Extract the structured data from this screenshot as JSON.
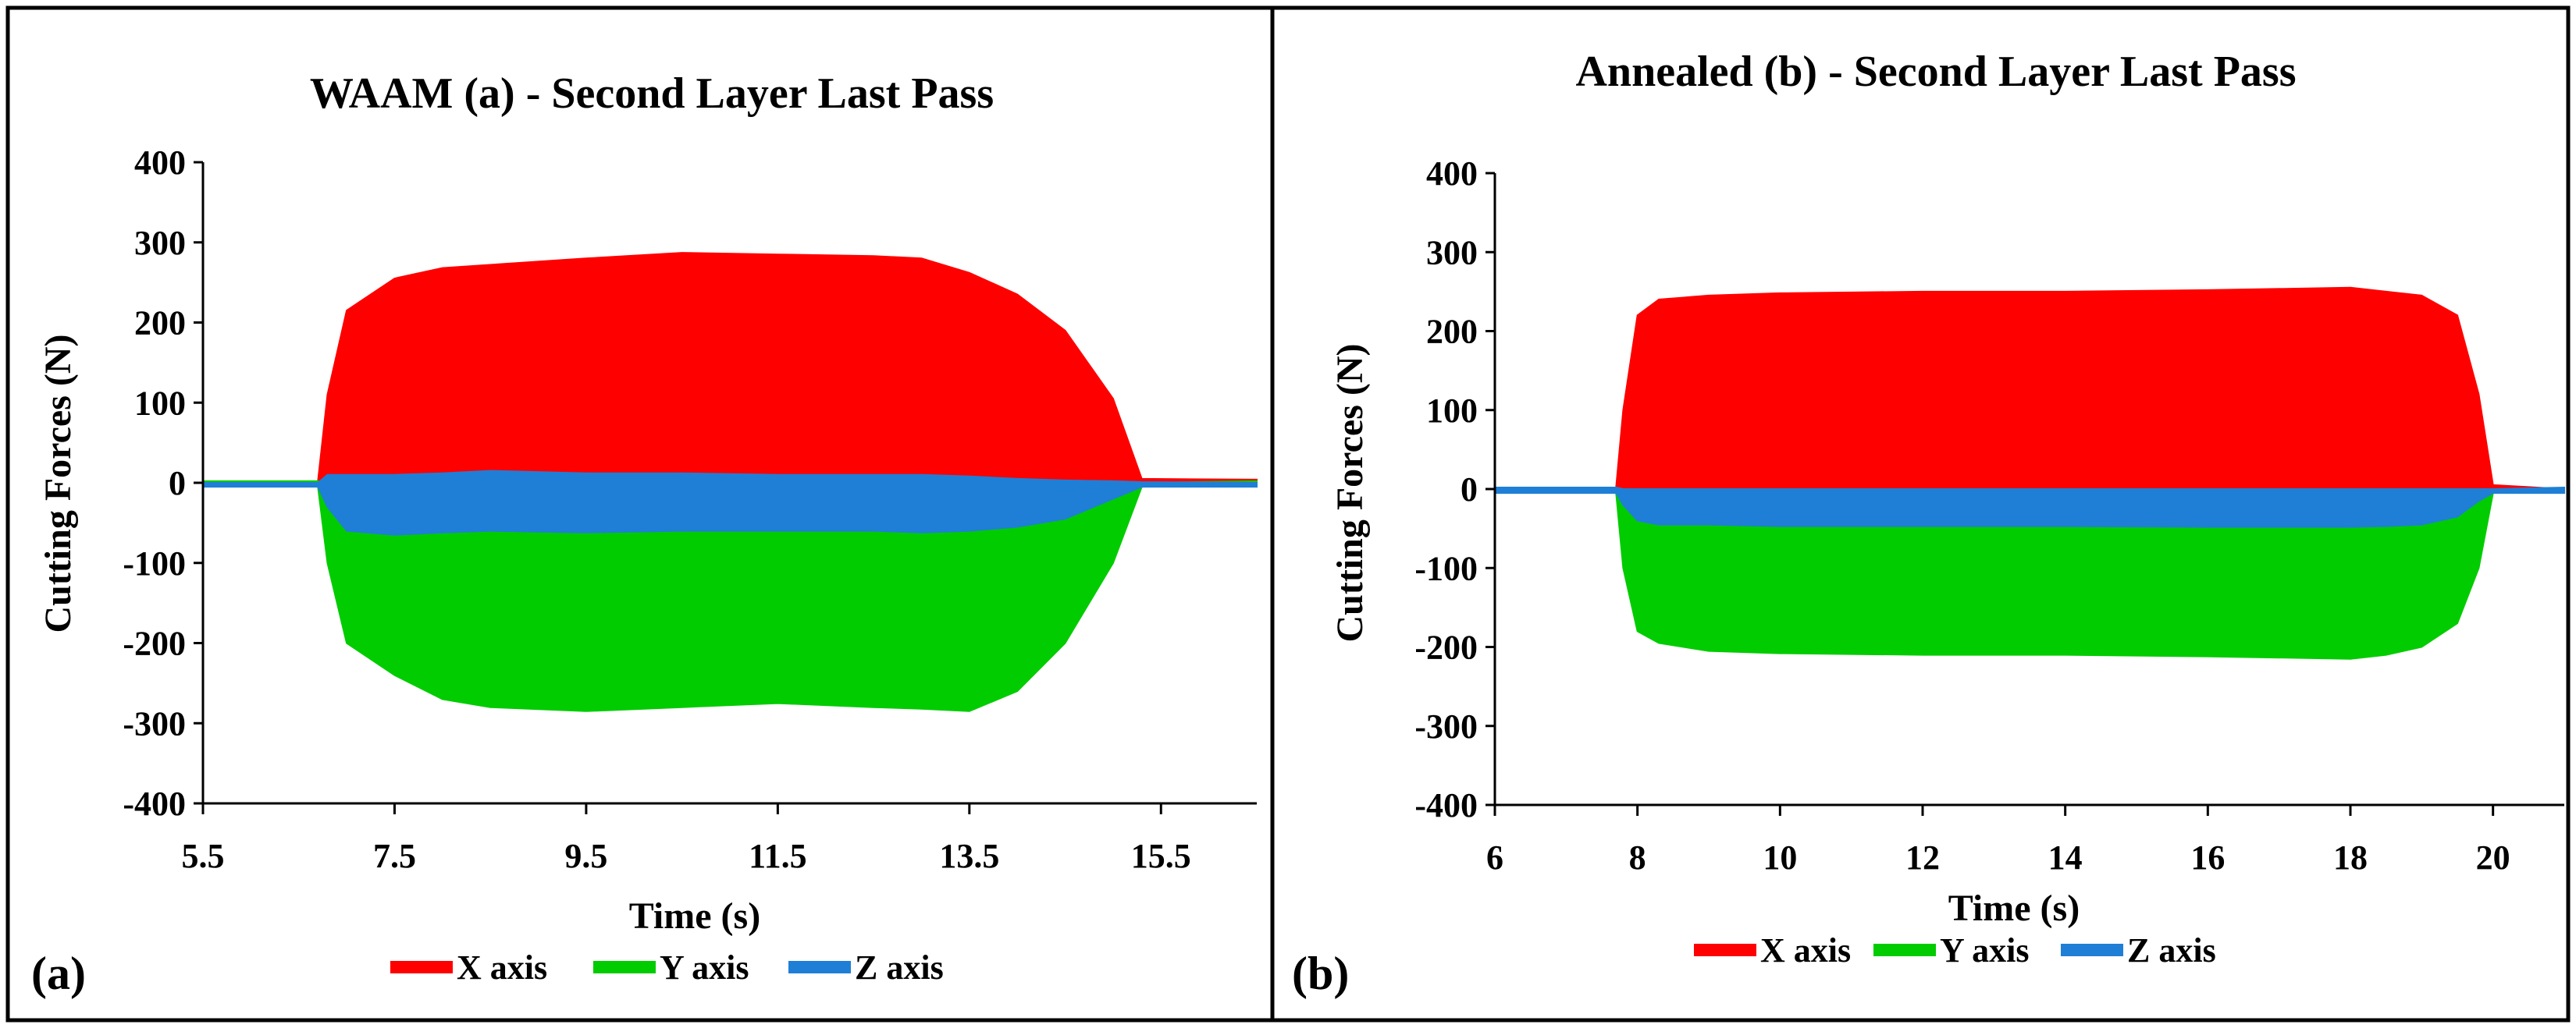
{
  "panel_labels": [
    "(a)",
    "(b)"
  ],
  "colors": {
    "x_axis": "#ff0000",
    "y_axis": "#00cc00",
    "z_axis": "#1f7fd6",
    "frame": "#000000"
  },
  "chart_data": [
    {
      "type": "area",
      "title": "WAAM (a) - Second Layer Last Pass",
      "xlabel": "Time (s)",
      "ylabel": "Cutting Forces (N)",
      "xlim": [
        5.5,
        16.5
      ],
      "ylim": [
        -400,
        400
      ],
      "xticks": [
        5.5,
        7.5,
        9.5,
        11.5,
        13.5,
        15.5
      ],
      "xtick_labels": [
        "5.5",
        "7.5",
        "9.5",
        "11.5",
        "13.5",
        "15.5"
      ],
      "yticks": [
        400,
        300,
        200,
        100,
        0,
        -100,
        -200,
        -300,
        -400
      ],
      "ytick_labels": [
        "400",
        "300",
        "200",
        "100",
        "0",
        "-100",
        "-200",
        "-300",
        "-400"
      ],
      "legend": [
        "X axis",
        "Y axis",
        "Z axis"
      ],
      "legend_position": "bottom",
      "series": [
        {
          "name": "X axis",
          "x": [
            5.5,
            6.7,
            6.8,
            7.0,
            7.5,
            8.0,
            8.5,
            9.5,
            10.5,
            11.5,
            12.5,
            13.0,
            13.5,
            14.0,
            14.5,
            15.0,
            15.3,
            16.5
          ],
          "upper": [
            0,
            2,
            110,
            215,
            255,
            268,
            272,
            280,
            287,
            285,
            283,
            280,
            262,
            235,
            190,
            105,
            5,
            4
          ],
          "lower": [
            0,
            0,
            0,
            0,
            0,
            0,
            0,
            0,
            0,
            0,
            0,
            0,
            0,
            0,
            0,
            0,
            0,
            0
          ]
        },
        {
          "name": "Y axis",
          "x": [
            5.5,
            6.7,
            6.8,
            7.0,
            7.5,
            8.0,
            8.5,
            9.5,
            10.5,
            11.5,
            12.5,
            13.0,
            13.5,
            14.0,
            14.5,
            15.0,
            15.3,
            16.5
          ],
          "upper": [
            2,
            2,
            0,
            0,
            0,
            0,
            0,
            0,
            0,
            0,
            0,
            0,
            0,
            0,
            0,
            0,
            0,
            2
          ],
          "lower": [
            2,
            -5,
            -100,
            -200,
            -240,
            -270,
            -280,
            -285,
            -280,
            -275,
            -280,
            -282,
            -285,
            -260,
            -200,
            -100,
            -5,
            0
          ]
        },
        {
          "name": "Z axis",
          "x": [
            5.5,
            6.7,
            6.8,
            7.0,
            7.5,
            8.0,
            8.5,
            9.5,
            10.5,
            11.5,
            12.5,
            13.0,
            13.5,
            14.0,
            14.5,
            15.0,
            15.3,
            16.5
          ],
          "upper": [
            0,
            0,
            10,
            10,
            10,
            12,
            15,
            12,
            12,
            10,
            10,
            10,
            8,
            5,
            3,
            2,
            1,
            0
          ],
          "lower": [
            -5,
            -5,
            -30,
            -60,
            -65,
            -62,
            -60,
            -62,
            -60,
            -60,
            -60,
            -62,
            -60,
            -55,
            -45,
            -20,
            -5,
            -5
          ]
        }
      ]
    },
    {
      "type": "area",
      "title": "Annealed (b) - Second Layer Last Pass",
      "xlabel": "Time (s)",
      "ylabel": "Cutting Forces (N)",
      "xlim": [
        6,
        21
      ],
      "ylim": [
        -400,
        400
      ],
      "xticks": [
        6,
        8,
        10,
        12,
        14,
        16,
        18,
        20
      ],
      "xtick_labels": [
        "6",
        "8",
        "10",
        "12",
        "14",
        "16",
        "18",
        "20"
      ],
      "yticks": [
        400,
        300,
        200,
        100,
        0,
        -100,
        -200,
        -300,
        -400
      ],
      "ytick_labels": [
        "400",
        "300",
        "200",
        "100",
        "0",
        "-100",
        "-200",
        "-300",
        "-400"
      ],
      "legend": [
        "X axis",
        "Y axis",
        "Z axis"
      ],
      "legend_position": "bottom",
      "series": [
        {
          "name": "X axis",
          "x": [
            6,
            7.7,
            7.8,
            8.0,
            8.3,
            9.0,
            10,
            12,
            14,
            16,
            18,
            18.5,
            19.0,
            19.5,
            19.8,
            20.0,
            21
          ],
          "upper": [
            0,
            2,
            100,
            220,
            240,
            245,
            248,
            250,
            250,
            252,
            255,
            250,
            245,
            220,
            120,
            5,
            0
          ],
          "lower": [
            0,
            0,
            0,
            0,
            0,
            0,
            0,
            0,
            0,
            0,
            0,
            0,
            0,
            0,
            0,
            0,
            0
          ]
        },
        {
          "name": "Y axis",
          "x": [
            6,
            7.7,
            7.8,
            8.0,
            8.3,
            9.0,
            10,
            12,
            14,
            16,
            18,
            18.5,
            19.0,
            19.5,
            19.8,
            20.0,
            21
          ],
          "upper": [
            0,
            0,
            0,
            0,
            0,
            0,
            0,
            0,
            0,
            0,
            0,
            0,
            0,
            0,
            0,
            0,
            0
          ],
          "lower": [
            0,
            -5,
            -100,
            -180,
            -195,
            -205,
            -208,
            -210,
            -210,
            -212,
            -215,
            -210,
            -200,
            -170,
            -100,
            -5,
            0
          ]
        },
        {
          "name": "Z axis",
          "x": [
            6,
            7.7,
            7.8,
            8.0,
            8.3,
            9.0,
            10,
            12,
            14,
            16,
            18,
            18.5,
            19.0,
            19.5,
            19.8,
            20.0,
            21
          ],
          "upper": [
            2,
            2,
            0,
            0,
            0,
            0,
            0,
            0,
            0,
            0,
            0,
            0,
            0,
            0,
            0,
            0,
            2
          ],
          "lower": [
            -5,
            -5,
            -20,
            -40,
            -45,
            -45,
            -47,
            -47,
            -47,
            -48,
            -48,
            -47,
            -45,
            -35,
            -15,
            -5,
            -5
          ]
        }
      ]
    }
  ]
}
